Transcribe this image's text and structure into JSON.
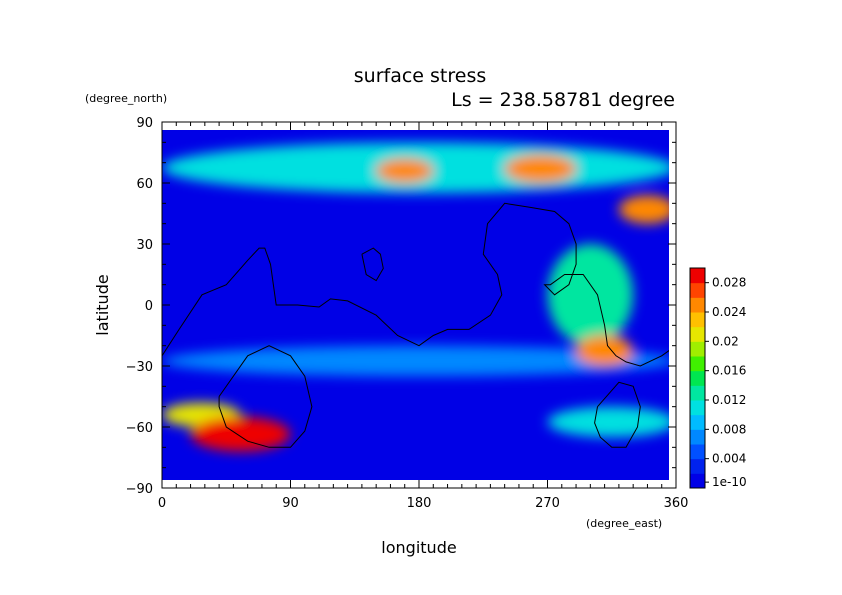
{
  "chart_data": {
    "type": "heatmap",
    "title": "surface stress",
    "subtitle": "Ls = 238.58781 degree",
    "xlabel": "longitude",
    "ylabel": "latitude",
    "x_unit": "(degree_east)",
    "y_unit": "(degree_north)",
    "xlim": [
      0,
      360
    ],
    "ylim": [
      -90,
      90
    ],
    "x_ticks": [
      "0",
      "90",
      "180",
      "270",
      "360"
    ],
    "y_ticks": [
      "90",
      "60",
      "30",
      "0",
      "−30",
      "−60",
      "−90"
    ],
    "grid": false,
    "colorbar": {
      "placement": "right",
      "range": [
        0,
        0.03
      ],
      "tick_labels": [
        "0.028",
        "0.024",
        "0.02",
        "0.016",
        "0.012",
        "0.008",
        "0.004",
        "1e-10"
      ],
      "colors": [
        "#0000e6",
        "#0022ee",
        "#0050ff",
        "#0088ff",
        "#00bbff",
        "#00e0e0",
        "#00e6a0",
        "#00e650",
        "#40f000",
        "#a0ee00",
        "#e6e600",
        "#ffc000",
        "#ff8800",
        "#ff4400",
        "#ee0000"
      ]
    },
    "features": [
      {
        "lon": [
          20,
          90
        ],
        "lat": [
          -72,
          -55
        ],
        "value": 0.029
      },
      {
        "lon": [
          0,
          55
        ],
        "lat": [
          -60,
          -48
        ],
        "value": 0.02
      },
      {
        "lon": [
          150,
          190
        ],
        "lat": [
          60,
          72
        ],
        "value": 0.024
      },
      {
        "lon": [
          240,
          290
        ],
        "lat": [
          60,
          74
        ],
        "value": 0.025
      },
      {
        "lon": [
          320,
          360
        ],
        "lat": [
          40,
          54
        ],
        "value": 0.025
      },
      {
        "lon": [
          290,
          330
        ],
        "lat": [
          -30,
          -15
        ],
        "value": 0.024
      },
      {
        "lon": [
          0,
          360
        ],
        "lat": [
          55,
          80
        ],
        "value": 0.01
      },
      {
        "lon": [
          270,
          330
        ],
        "lat": [
          -20,
          30
        ],
        "value": 0.012
      },
      {
        "lon": [
          270,
          360
        ],
        "lat": [
          -65,
          -50
        ],
        "value": 0.01
      },
      {
        "lon": [
          0,
          360
        ],
        "lat": [
          -35,
          -20
        ],
        "value": 0.006
      }
    ],
    "contour_lines": [
      {
        "lon": [
          0,
          12,
          28,
          45,
          60,
          68,
          72,
          76,
          80,
          95,
          110,
          118,
          130,
          150,
          165,
          180,
          190,
          200,
          215,
          230,
          238,
          235,
          225,
          228,
          240,
          258,
          275,
          285,
          290,
          290,
          285,
          275,
          268,
          272,
          282,
          295,
          305,
          310,
          312,
          318,
          325,
          335,
          350,
          360
        ],
        "lat": [
          -25,
          -12,
          5,
          10,
          22,
          28,
          28,
          20,
          0,
          0,
          -1,
          3,
          2,
          -5,
          -15,
          -20,
          -15,
          -12,
          -12,
          -5,
          5,
          15,
          25,
          40,
          50,
          48,
          46,
          40,
          30,
          20,
          10,
          5,
          10,
          10,
          15,
          15,
          5,
          -10,
          -20,
          -25,
          -28,
          -30,
          -25,
          -20
        ]
      },
      {
        "lon": [
          40,
          60,
          75,
          90,
          100,
          105,
          100,
          90,
          75,
          60,
          45,
          40,
          40
        ],
        "lat": [
          -45,
          -25,
          -20,
          -25,
          -35,
          -50,
          -62,
          -70,
          -70,
          -67,
          -60,
          -50,
          -45
        ]
      },
      {
        "lon": [
          305,
          320,
          330,
          335,
          333,
          325,
          315,
          307,
          303,
          305
        ],
        "lat": [
          -50,
          -38,
          -40,
          -50,
          -60,
          -70,
          -70,
          -65,
          -58,
          -50
        ]
      },
      {
        "lon": [
          140,
          148,
          153,
          155,
          150,
          143,
          140
        ],
        "lat": [
          25,
          28,
          25,
          18,
          12,
          15,
          25
        ]
      }
    ]
  }
}
